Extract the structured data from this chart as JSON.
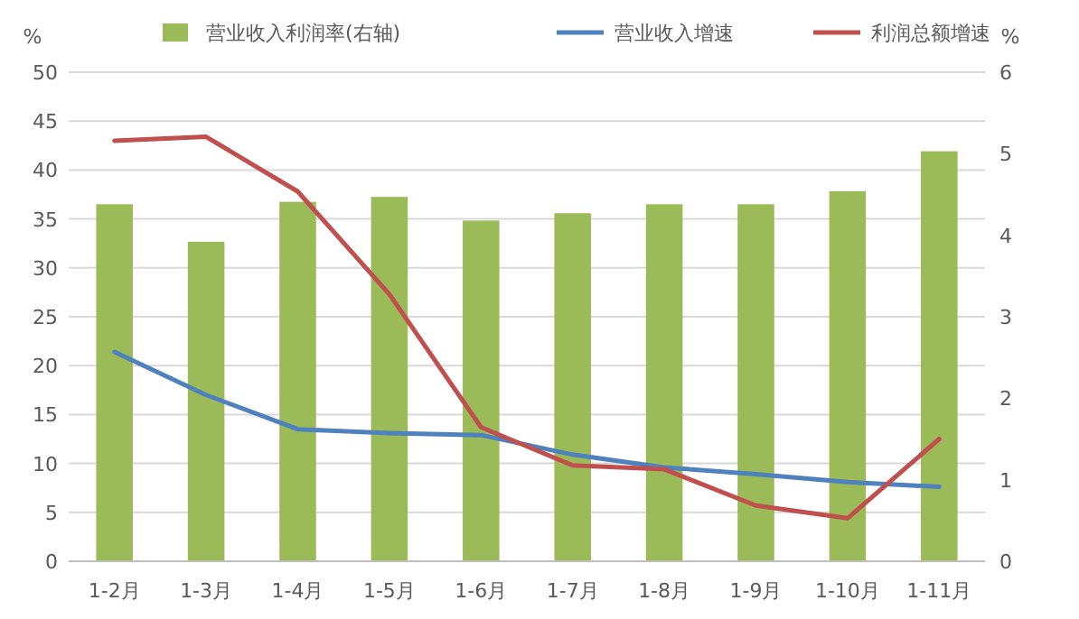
{
  "chart_data": {
    "type": "bar",
    "ylabel": "%",
    "y2label": "%",
    "categories": [
      "1-2月",
      "1-3月",
      "1-4月",
      "1-5月",
      "1-6月",
      "1-7月",
      "1-8月",
      "1-9月",
      "1-10月",
      "1-11月"
    ],
    "series": [
      {
        "name": "营业收入利润率(右轴)",
        "axis": "y2",
        "color": "#9bbb59",
        "values": [
          4.38,
          3.92,
          4.41,
          4.47,
          4.18,
          4.27,
          4.38,
          4.38,
          4.54,
          5.03
        ]
      },
      {
        "name": "营业收入增速",
        "type": "line",
        "color": "#4f81bd",
        "values": [
          21.4,
          17.0,
          13.5,
          13.1,
          12.9,
          10.9,
          9.6,
          8.9,
          8.1,
          7.6
        ]
      },
      {
        "name": "利润总额增速",
        "type": "line",
        "color": "#c0504d",
        "values": [
          43.0,
          43.4,
          37.8,
          27.3,
          13.7,
          9.8,
          9.4,
          5.7,
          4.4,
          12.5
        ]
      }
    ],
    "ylim": [
      0,
      50
    ],
    "yticks": [
      0,
      5,
      10,
      15,
      20,
      25,
      30,
      35,
      40,
      45,
      50
    ],
    "y2lim": [
      0,
      6
    ],
    "y2ticks": [
      0,
      1,
      2,
      3,
      4,
      5,
      6
    ],
    "grid": "y",
    "legend": "top",
    "marker": "none",
    "line_style": "solid"
  }
}
